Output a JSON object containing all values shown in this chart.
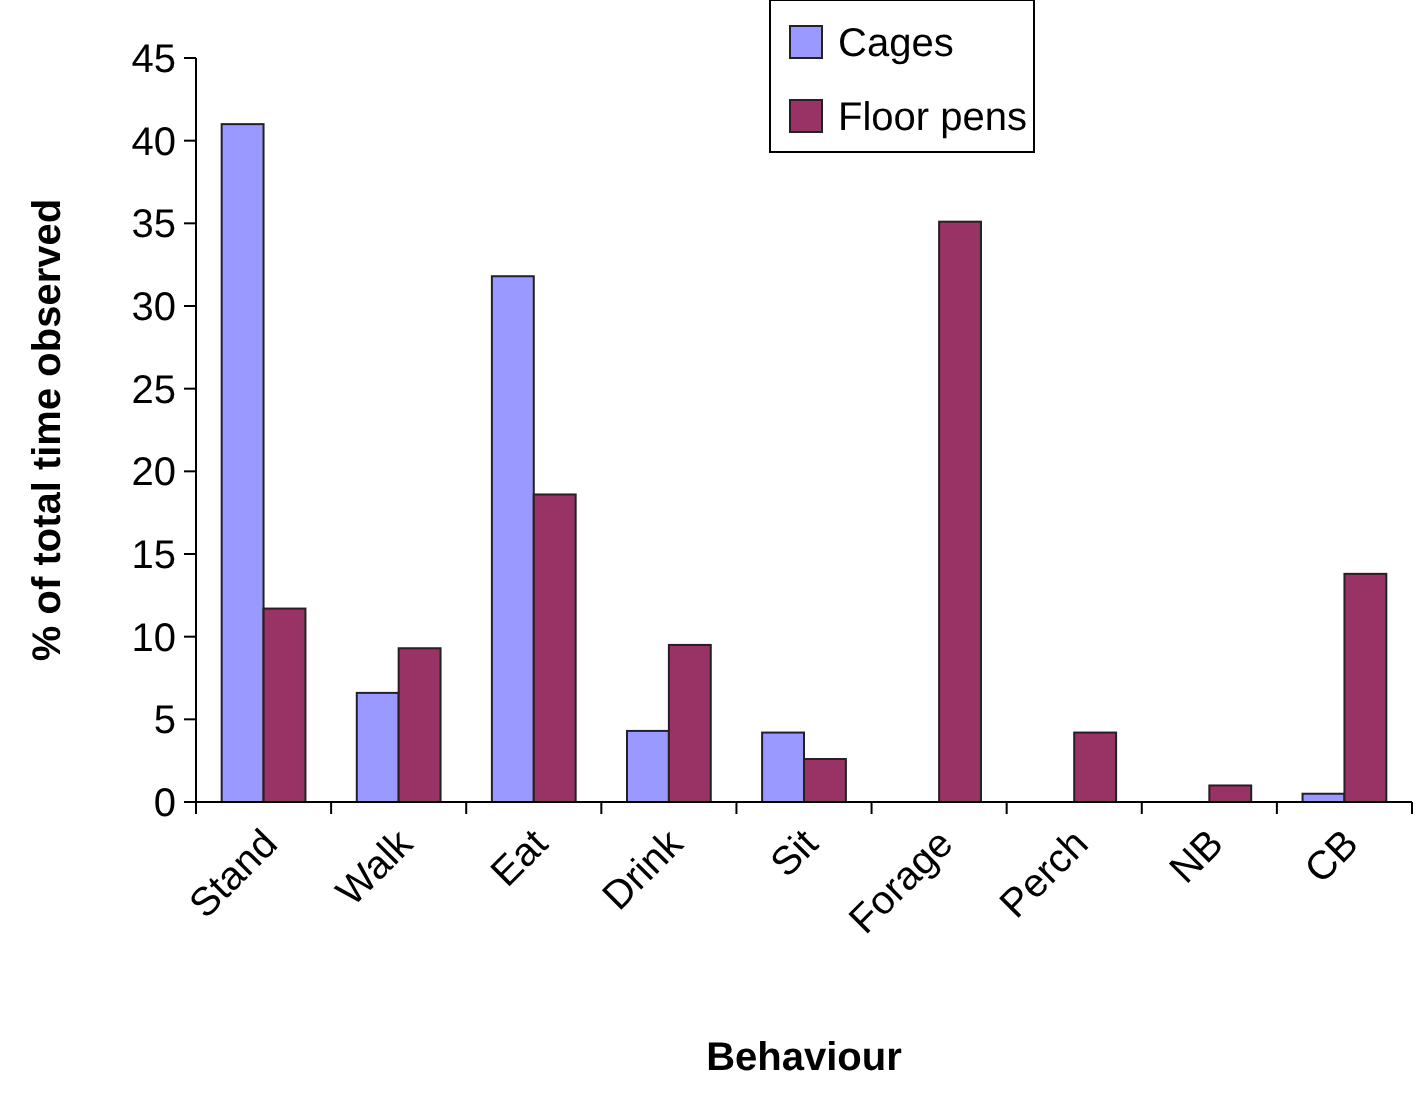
{
  "chart_data": {
    "type": "bar",
    "xlabel": "Behaviour",
    "ylabel": "% of total time observed",
    "categories": [
      "Stand",
      "Walk",
      "Eat",
      "Drink",
      "Sit",
      "Forage",
      "Perch",
      "NB",
      "CB"
    ],
    "series": [
      {
        "name": "Cages",
        "color": "#9999ff",
        "values": [
          41,
          6.6,
          31.8,
          4.3,
          4.2,
          0,
          0,
          0,
          0.5
        ]
      },
      {
        "name": "Floor pens",
        "color": "#993366",
        "values": [
          11.7,
          9.3,
          18.6,
          9.5,
          2.6,
          35.1,
          4.2,
          1,
          13.8
        ]
      }
    ],
    "ylim": [
      0,
      45
    ],
    "yticks": [
      0,
      5,
      10,
      15,
      20,
      25,
      30,
      35,
      40,
      45
    ],
    "grid": false,
    "legend": "top right"
  }
}
